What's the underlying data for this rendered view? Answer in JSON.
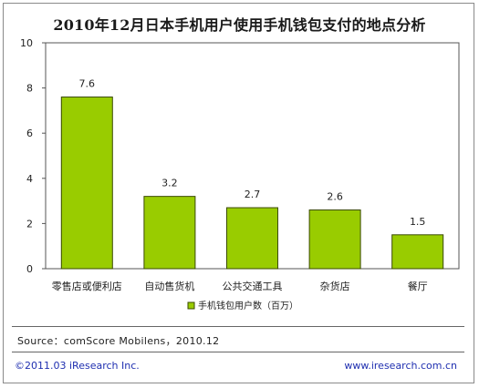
{
  "chart_data": {
    "type": "bar",
    "title": "2010年12月日本手机用户使用手机钱包支付的地点分析",
    "categories": [
      "零售店或便利店",
      "自动售货机",
      "公共交通工具",
      "杂货店",
      "餐厅"
    ],
    "series": [
      {
        "name": "手机钱包用户数（百万）",
        "values": [
          7.6,
          3.2,
          2.7,
          2.6,
          1.5
        ]
      }
    ],
    "data_labels": [
      "7.6",
      "3.2",
      "2.7",
      "2.6",
      "1.5"
    ],
    "ylim": [
      0,
      10
    ],
    "yticks": [
      "0",
      "2",
      "4",
      "6",
      "8",
      "10"
    ],
    "xlabel": "",
    "ylabel": "",
    "bar_color": "#99cc00",
    "bar_border_color": "#3a4a00",
    "grid": false,
    "legend_position": "bottom"
  },
  "source_text": "Source：comScore Mobilens，2010.12",
  "footer": {
    "copyright": "©2011.03 iResearch Inc.",
    "website": "www.iresearch.com.cn"
  }
}
